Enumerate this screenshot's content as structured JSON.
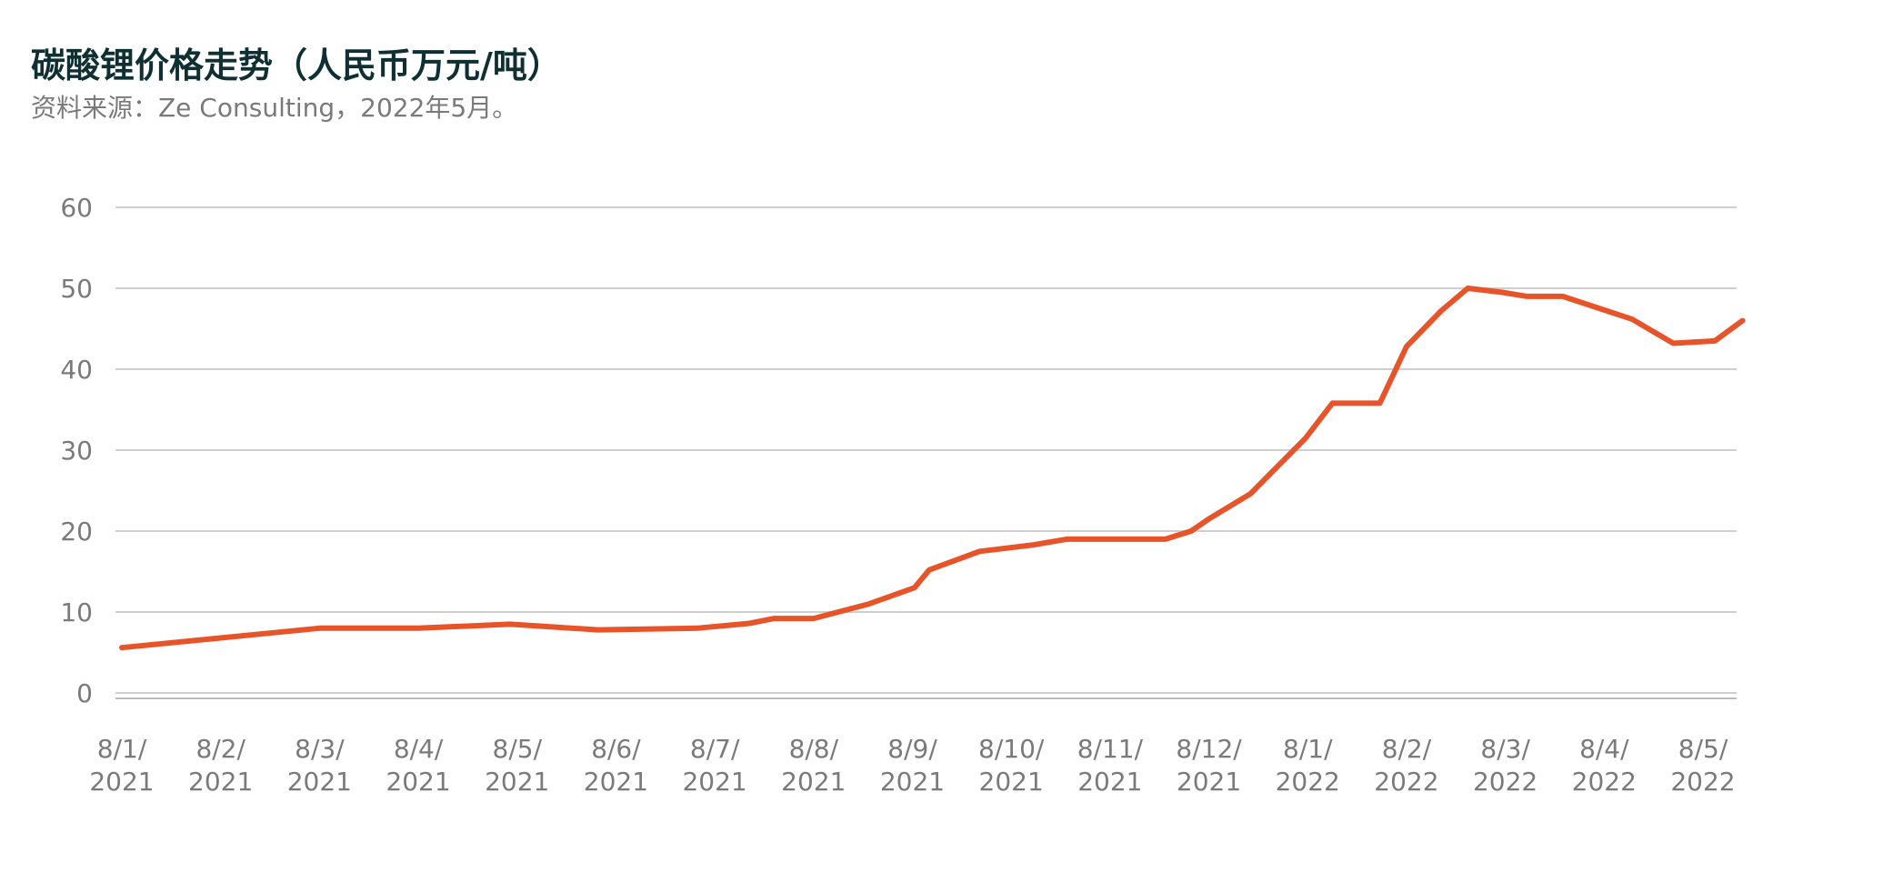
{
  "chart_data": {
    "type": "line",
    "title": "碳酸锂价格走势（人民币万元/吨）",
    "subtitle": "资料来源：Ze Consulting，2022年5月。",
    "xlabel": "",
    "ylabel": "",
    "ylim": [
      0,
      60
    ],
    "yticks": [
      0,
      10,
      20,
      30,
      40,
      50,
      60
    ],
    "grid": true,
    "line_color": "#e8542a",
    "x_ticks": [
      {
        "line1": "8/1/",
        "line2": "2021"
      },
      {
        "line1": "8/2/",
        "line2": "2021"
      },
      {
        "line1": "8/3/",
        "line2": "2021"
      },
      {
        "line1": "8/4/",
        "line2": "2021"
      },
      {
        "line1": "8/5/",
        "line2": "2021"
      },
      {
        "line1": "8/6/",
        "line2": "2021"
      },
      {
        "line1": "8/7/",
        "line2": "2021"
      },
      {
        "line1": "8/8/",
        "line2": "2021"
      },
      {
        "line1": "8/9/",
        "line2": "2021"
      },
      {
        "line1": "8/10/",
        "line2": "2021"
      },
      {
        "line1": "8/11/",
        "line2": "2021"
      },
      {
        "line1": "8/12/",
        "line2": "2021"
      },
      {
        "line1": "8/1/",
        "line2": "2022"
      },
      {
        "line1": "8/2/",
        "line2": "2022"
      },
      {
        "line1": "8/3/",
        "line2": "2022"
      },
      {
        "line1": "8/4/",
        "line2": "2022"
      },
      {
        "line1": "8/5/",
        "line2": "2022"
      }
    ],
    "series": [
      {
        "values": [
          [
            0,
            5.6
          ],
          [
            1.0,
            6.8
          ],
          [
            2.0,
            8.0
          ],
          [
            3.0,
            8.0
          ],
          [
            3.93,
            8.5
          ],
          [
            4.82,
            7.8
          ],
          [
            5.82,
            8.0
          ],
          [
            6.35,
            8.6
          ],
          [
            6.6,
            9.2
          ],
          [
            7.0,
            9.2
          ],
          [
            7.56,
            11.0
          ],
          [
            8.02,
            13.0
          ],
          [
            8.17,
            15.2
          ],
          [
            8.68,
            17.5
          ],
          [
            9.23,
            18.3
          ],
          [
            9.56,
            19.0
          ],
          [
            10.0,
            19.0
          ],
          [
            10.56,
            19.0
          ],
          [
            10.82,
            20.0
          ],
          [
            11.0,
            21.5
          ],
          [
            11.42,
            24.6
          ],
          [
            11.98,
            31.5
          ],
          [
            12.25,
            35.8
          ],
          [
            12.73,
            35.8
          ],
          [
            13.0,
            42.8
          ],
          [
            13.35,
            47.2
          ],
          [
            13.62,
            50.0
          ],
          [
            13.97,
            49.5
          ],
          [
            14.22,
            49.0
          ],
          [
            14.58,
            49.0
          ],
          [
            14.93,
            47.6
          ],
          [
            15.28,
            46.2
          ],
          [
            15.7,
            43.2
          ],
          [
            16.12,
            43.5
          ],
          [
            16.4,
            46.0
          ]
        ]
      }
    ]
  }
}
